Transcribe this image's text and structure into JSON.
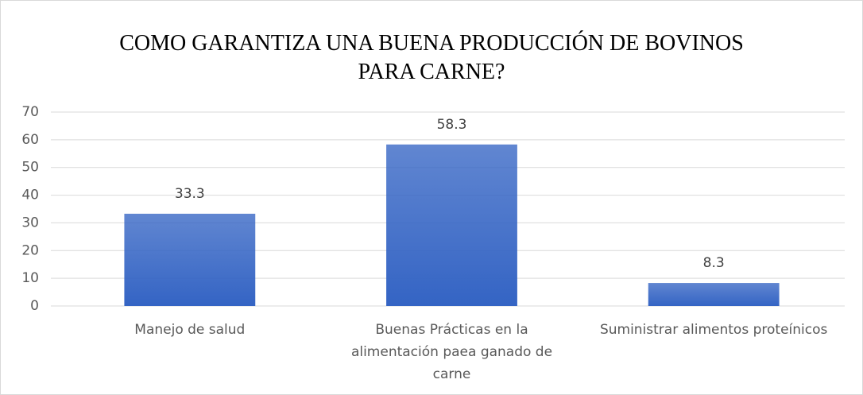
{
  "chart_data": {
    "type": "bar",
    "title": "COMO GARANTIZA UNA BUENA PRODUCCIÓN DE BOVINOS PARA CARNE?",
    "categories": [
      "Manejo de salud",
      "Buenas Prácticas en la alimentación paea ganado de carne",
      "Suministrar alimentos proteínicos"
    ],
    "values": [
      33.3,
      58.3,
      8.3
    ],
    "color": "#3464c4",
    "ylim": [
      0,
      70
    ],
    "yticks": [
      0,
      10,
      20,
      30,
      40,
      50,
      60,
      70
    ],
    "grid": true
  }
}
